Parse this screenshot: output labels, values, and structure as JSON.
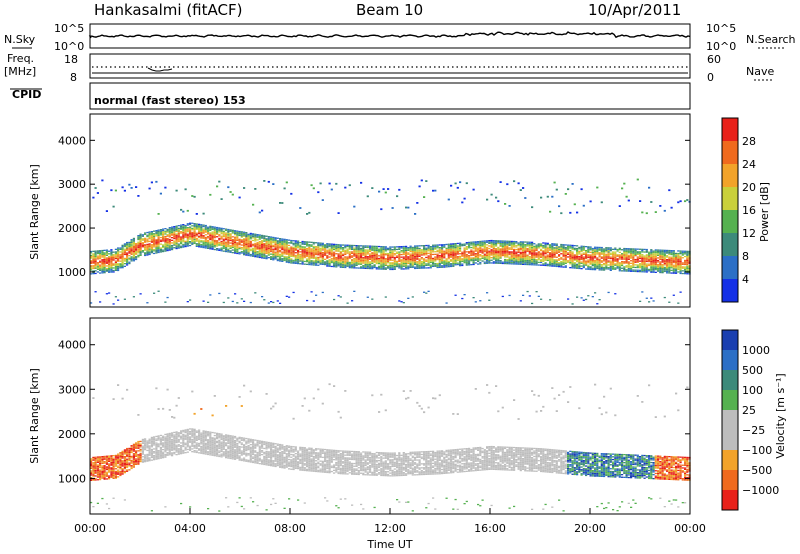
{
  "header": {
    "station": "Hankasalmi (fitACF)",
    "beam": "Beam 10",
    "date": "10/Apr/2011"
  },
  "noise_panel": {
    "left_label": "N.Sky",
    "right_label": "N.Search",
    "left_ticks": [
      "10^5",
      "10^0"
    ],
    "right_ticks": [
      "10^5",
      "10^0"
    ]
  },
  "freq_panel": {
    "left_label_1": "Freq.",
    "left_label_2": "[MHz]",
    "left_ticks": [
      "18",
      "8"
    ],
    "right_label": "Nave",
    "right_ticks": [
      "60",
      "0"
    ]
  },
  "cpid": {
    "label": "CPID",
    "text": "normal (fast stereo) 153"
  },
  "colors": {
    "power": [
      "#1430e6",
      "#2b6fc6",
      "#3c8a7a",
      "#55b150",
      "#c9cf3a",
      "#f2a32a",
      "#ef6a1e",
      "#e8211a"
    ],
    "velocity": [
      "#e8211a",
      "#ef6a1e",
      "#f2a32a",
      "#bdbdbd",
      "#bdbdbd",
      "#55b150",
      "#3c8a7a",
      "#2b6fc6",
      "#1a3fb0"
    ],
    "ground_scatter": "#bdbdbd"
  },
  "chart_data": [
    {
      "type": "heatmap",
      "name": "power",
      "ylabel": "Slant Range [km]",
      "y_ticks": [
        "1000",
        "2000",
        "3000",
        "4000"
      ],
      "ylim": [
        200,
        4600
      ],
      "x_domain_hours": [
        0,
        24
      ],
      "colorbar": {
        "label": "Power [dB]",
        "ticks": [
          "4",
          "8",
          "12",
          "16",
          "20",
          "24",
          "28"
        ],
        "range": [
          0,
          32
        ]
      },
      "main_band": [
        [
          0,
          1200
        ],
        [
          1,
          1250
        ],
        [
          2,
          1600
        ],
        [
          4,
          1850
        ],
        [
          6,
          1650
        ],
        [
          8,
          1450
        ],
        [
          10,
          1350
        ],
        [
          12,
          1300
        ],
        [
          14,
          1350
        ],
        [
          16,
          1450
        ],
        [
          18,
          1400
        ],
        [
          20,
          1300
        ],
        [
          22,
          1250
        ],
        [
          24,
          1200
        ]
      ]
    },
    {
      "type": "heatmap",
      "name": "velocity",
      "ylabel": "Slant Range [km]",
      "y_ticks": [
        "1000",
        "2000",
        "3000",
        "4000"
      ],
      "ylim": [
        200,
        4600
      ],
      "x_domain_hours": [
        0,
        24
      ],
      "xlabel": "Time UT",
      "x_ticks": [
        "00:00",
        "04:00",
        "08:00",
        "12:00",
        "16:00",
        "20:00",
        "00:00"
      ],
      "colorbar": {
        "label": "Velocity [m s⁻¹]",
        "ticks": [
          "1000",
          "500",
          "100",
          "25",
          "−25",
          "−100",
          "−500",
          "−1000"
        ],
        "range": [
          -1000,
          1000
        ]
      }
    }
  ]
}
